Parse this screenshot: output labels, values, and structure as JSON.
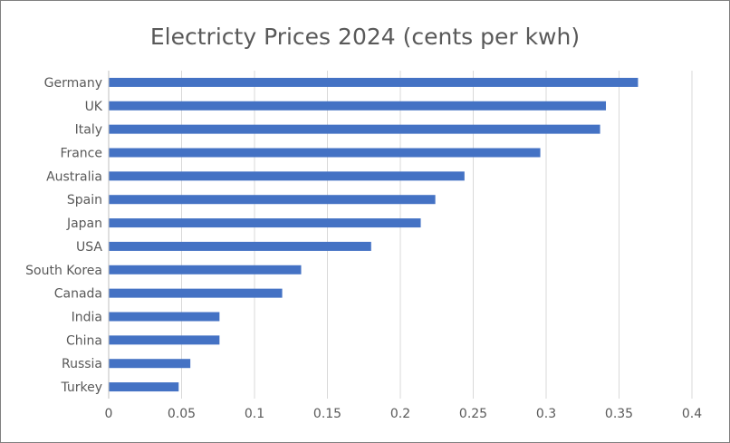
{
  "chart_data": {
    "type": "bar",
    "orientation": "horizontal",
    "title": "Electricty Prices 2024 (cents per kwh)",
    "xlabel": "",
    "ylabel": "",
    "categories": [
      "Germany",
      "UK",
      "Italy",
      "France",
      "Australia",
      "Spain",
      "Japan",
      "USA",
      "South Korea",
      "Canada",
      "India",
      "China",
      "Russia",
      "Turkey"
    ],
    "values": [
      0.363,
      0.341,
      0.337,
      0.296,
      0.244,
      0.224,
      0.214,
      0.18,
      0.132,
      0.119,
      0.076,
      0.076,
      0.056,
      0.048
    ],
    "xlim": [
      0,
      0.4
    ],
    "xticks": [
      "0",
      "0.05",
      "0.1",
      "0.15",
      "0.2",
      "0.25",
      "0.3",
      "0.35",
      "0.4"
    ],
    "grid": "vertical",
    "legend": "none",
    "bar_color": "#4472c4",
    "grid_color": "#d9d9d9"
  }
}
